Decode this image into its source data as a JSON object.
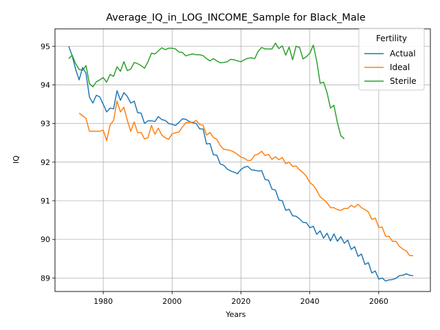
{
  "chart_data": {
    "type": "line",
    "title": "Average_IQ_in_LOG_INCOME_Sample for Black_Male",
    "xlabel": "Years",
    "ylabel": "IQ",
    "xlim": [
      1966,
      2075
    ],
    "ylim": [
      88.65,
      95.45
    ],
    "xticks": [
      1980,
      2000,
      2020,
      2040,
      2060
    ],
    "yticks": [
      89,
      90,
      91,
      92,
      93,
      94,
      95
    ],
    "grid": true,
    "legend": {
      "title": "Fertility",
      "position": "top-right"
    },
    "series": [
      {
        "name": "Actual",
        "color": "#1f77b4",
        "x": [
          1970,
          1971,
          1972,
          1973,
          1974,
          1975,
          1976,
          1977,
          1978,
          1979,
          1980,
          1981,
          1982,
          1983,
          1984,
          1985,
          1986,
          1987,
          1988,
          1989,
          1990,
          1991,
          1992,
          1993,
          1994,
          1995,
          1996,
          1997,
          1998,
          1999,
          2000,
          2001,
          2002,
          2003,
          2004,
          2005,
          2006,
          2007,
          2008,
          2009,
          2010,
          2011,
          2012,
          2013,
          2014,
          2015,
          2016,
          2017,
          2018,
          2019,
          2020,
          2021,
          2022,
          2023,
          2024,
          2025,
          2026,
          2027,
          2028,
          2029,
          2030,
          2031,
          2032,
          2033,
          2034,
          2035,
          2036,
          2037,
          2038,
          2039,
          2040,
          2041,
          2042,
          2043,
          2044,
          2045,
          2046,
          2047,
          2048,
          2049,
          2050,
          2051,
          2052,
          2053,
          2054,
          2055,
          2056,
          2057,
          2058,
          2059,
          2060,
          2061,
          2062,
          2063,
          2064,
          2065,
          2066,
          2067,
          2068,
          2069,
          2070
        ],
        "values": [
          95.0,
          94.75,
          94.4,
          94.13,
          94.45,
          94.3,
          93.68,
          93.53,
          93.73,
          93.69,
          93.5,
          93.3,
          93.4,
          93.38,
          93.85,
          93.6,
          93.8,
          93.7,
          93.53,
          93.58,
          93.28,
          93.27,
          93.0,
          93.07,
          93.07,
          93.05,
          93.18,
          93.1,
          93.08,
          93.0,
          92.98,
          92.95,
          93.03,
          93.12,
          93.11,
          93.05,
          93.02,
          93.0,
          92.86,
          92.86,
          92.47,
          92.48,
          92.19,
          92.18,
          91.95,
          91.92,
          91.82,
          91.77,
          91.74,
          91.7,
          91.81,
          91.87,
          91.89,
          91.8,
          91.79,
          91.77,
          91.78,
          91.55,
          91.53,
          91.3,
          91.28,
          91.02,
          91.0,
          90.75,
          90.78,
          90.61,
          90.6,
          90.53,
          90.44,
          90.43,
          90.3,
          90.34,
          90.13,
          90.22,
          90.03,
          90.16,
          89.96,
          90.14,
          89.95,
          90.07,
          89.9,
          89.98,
          89.74,
          89.81,
          89.56,
          89.62,
          89.35,
          89.4,
          89.13,
          89.18,
          88.97,
          89.0,
          88.92,
          88.95,
          88.96,
          88.99,
          89.06,
          89.07,
          89.11,
          89.07,
          89.06
        ]
      },
      {
        "name": "Ideal",
        "color": "#ff7f0e",
        "x": [
          1973,
          1974,
          1975,
          1976,
          1977,
          1978,
          1979,
          1980,
          1981,
          1982,
          1983,
          1984,
          1985,
          1986,
          1987,
          1988,
          1989,
          1990,
          1991,
          1992,
          1993,
          1994,
          1995,
          1996,
          1997,
          1998,
          1999,
          2000,
          2001,
          2002,
          2003,
          2004,
          2005,
          2006,
          2007,
          2008,
          2009,
          2010,
          2011,
          2012,
          2013,
          2014,
          2015,
          2016,
          2017,
          2018,
          2019,
          2020,
          2021,
          2022,
          2023,
          2024,
          2025,
          2026,
          2027,
          2028,
          2029,
          2030,
          2031,
          2032,
          2033,
          2034,
          2035,
          2036,
          2037,
          2038,
          2039,
          2040,
          2041,
          2042,
          2043,
          2044,
          2045,
          2046,
          2047,
          2048,
          2049,
          2050,
          2051,
          2052,
          2053,
          2054,
          2055,
          2056,
          2057,
          2058,
          2059,
          2060,
          2061,
          2062,
          2063,
          2064,
          2065,
          2066,
          2067,
          2068,
          2069,
          2070
        ],
        "values": [
          93.27,
          93.2,
          93.13,
          92.8,
          92.8,
          92.8,
          92.8,
          92.83,
          92.56,
          92.96,
          93.08,
          93.58,
          93.3,
          93.42,
          93.08,
          92.8,
          93.04,
          92.76,
          92.77,
          92.6,
          92.63,
          92.95,
          92.72,
          92.88,
          92.7,
          92.63,
          92.59,
          92.73,
          92.76,
          92.78,
          92.91,
          93.02,
          93.03,
          93.03,
          93.08,
          92.97,
          92.96,
          92.7,
          92.77,
          92.64,
          92.59,
          92.43,
          92.33,
          92.32,
          92.3,
          92.26,
          92.2,
          92.13,
          92.1,
          92.04,
          92.05,
          92.18,
          92.21,
          92.28,
          92.17,
          92.2,
          92.07,
          92.14,
          92.06,
          92.12,
          91.96,
          92.0,
          91.89,
          91.9,
          91.8,
          91.73,
          91.63,
          91.47,
          91.4,
          91.27,
          91.1,
          91.03,
          90.95,
          90.82,
          90.82,
          90.77,
          90.75,
          90.8,
          90.8,
          90.88,
          90.83,
          90.91,
          90.82,
          90.77,
          90.71,
          90.52,
          90.55,
          90.31,
          90.32,
          90.08,
          90.08,
          89.95,
          89.95,
          89.82,
          89.75,
          89.7,
          89.58,
          89.58
        ]
      },
      {
        "name": "Sterile",
        "color": "#2ca02c",
        "x": [
          1970,
          1971,
          1972,
          1973,
          1974,
          1975,
          1976,
          1977,
          1978,
          1979,
          1980,
          1981,
          1982,
          1983,
          1984,
          1985,
          1986,
          1987,
          1988,
          1989,
          1990,
          1991,
          1992,
          1993,
          1994,
          1995,
          1996,
          1997,
          1998,
          1999,
          2000,
          2001,
          2002,
          2003,
          2004,
          2005,
          2006,
          2007,
          2008,
          2009,
          2010,
          2011,
          2012,
          2013,
          2014,
          2015,
          2016,
          2017,
          2018,
          2019,
          2020,
          2021,
          2022,
          2023,
          2024,
          2025,
          2026,
          2027,
          2028,
          2029,
          2030,
          2031,
          2032,
          2033,
          2034,
          2035,
          2036,
          2037,
          2038,
          2039,
          2040,
          2041,
          2042,
          2043,
          2044,
          2045,
          2046,
          2047,
          2048,
          2049,
          2050
        ],
        "values": [
          94.68,
          94.77,
          94.55,
          94.4,
          94.38,
          94.5,
          94.03,
          93.95,
          94.08,
          94.13,
          94.19,
          94.07,
          94.27,
          94.22,
          94.47,
          94.35,
          94.6,
          94.37,
          94.41,
          94.58,
          94.55,
          94.5,
          94.43,
          94.6,
          94.82,
          94.8,
          94.88,
          94.96,
          94.91,
          94.95,
          94.95,
          94.93,
          94.85,
          94.84,
          94.75,
          94.78,
          94.8,
          94.78,
          94.78,
          94.76,
          94.68,
          94.62,
          94.68,
          94.62,
          94.57,
          94.58,
          94.6,
          94.66,
          94.65,
          94.62,
          94.6,
          94.65,
          94.69,
          94.7,
          94.68,
          94.87,
          94.97,
          94.93,
          94.93,
          94.93,
          95.08,
          94.94,
          95.01,
          94.77,
          94.98,
          94.65,
          95.0,
          94.97,
          94.67,
          94.73,
          94.82,
          95.03,
          94.62,
          94.04,
          94.07,
          93.8,
          93.4,
          93.47,
          93.02,
          92.68,
          92.6
        ]
      }
    ]
  }
}
